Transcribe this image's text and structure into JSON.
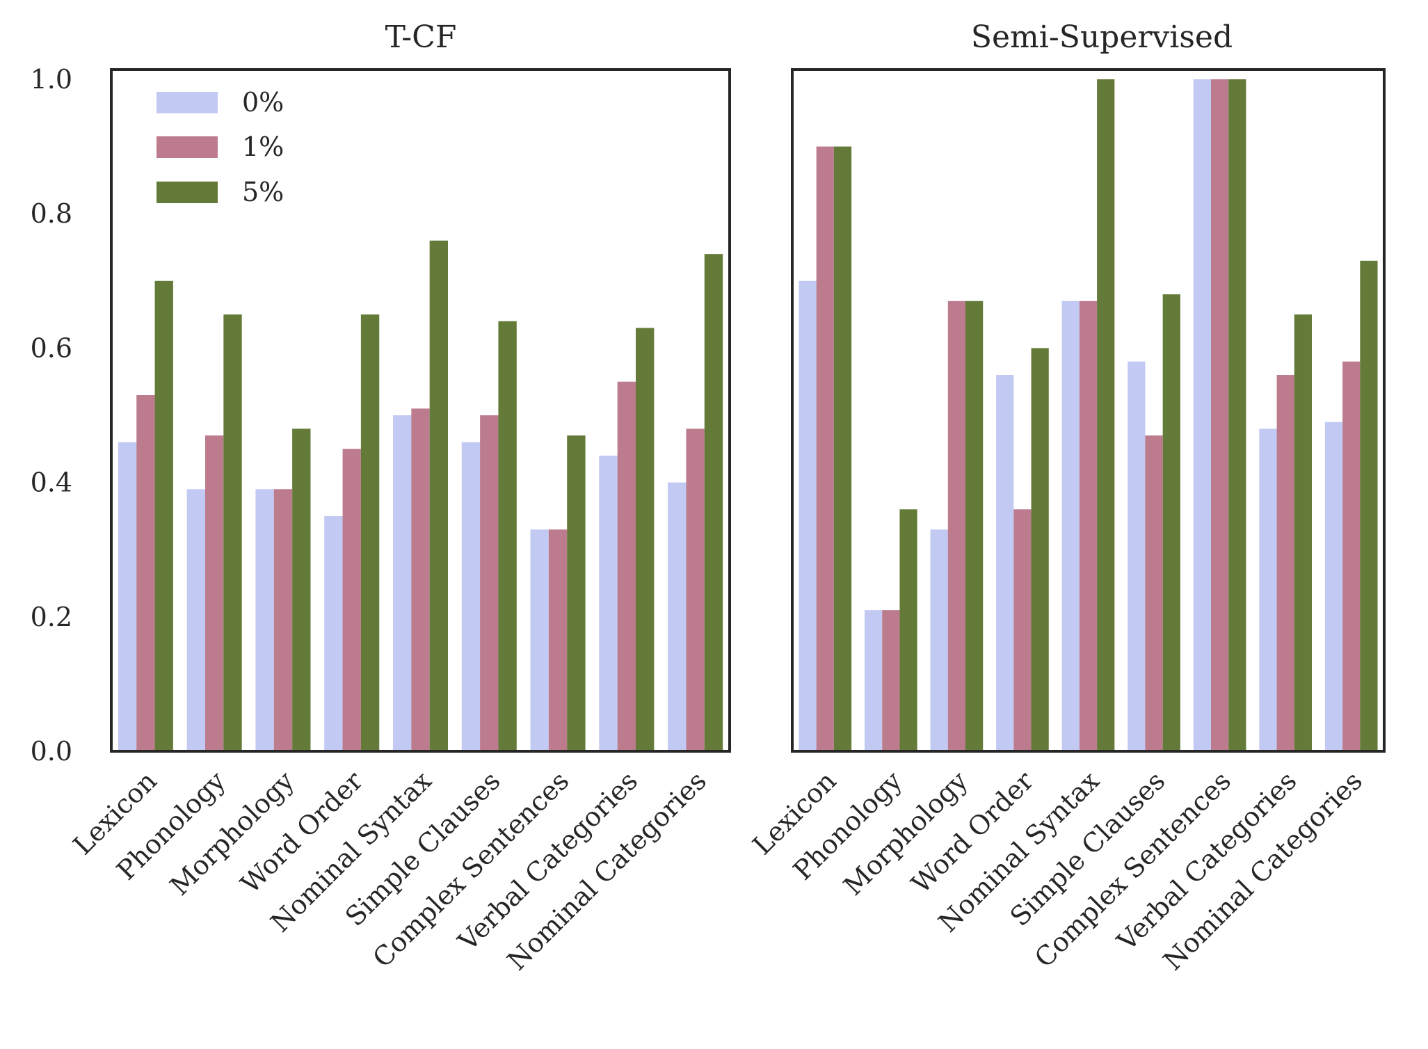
{
  "chart_data": [
    {
      "type": "bar",
      "title": "T-CF",
      "xlabel": "",
      "ylabel": "",
      "ylim": [
        0,
        1.0
      ],
      "yticks": [
        "0.0",
        "0.2",
        "0.4",
        "0.6",
        "0.8",
        "1.0"
      ],
      "grid": false,
      "legend_position": "top-left",
      "categories": [
        "Lexicon",
        "Phonology",
        "Morphology",
        "Word Order",
        "Nominal Syntax",
        "Simple Clauses",
        "Complex Sentences",
        "Verbal Categories",
        "Nominal Categories"
      ],
      "series": [
        {
          "name": "0%",
          "color": "#c2c9f2",
          "values": [
            0.46,
            0.39,
            0.39,
            0.35,
            0.5,
            0.46,
            0.33,
            0.44,
            0.4
          ]
        },
        {
          "name": "1%",
          "color": "#bd7b8e",
          "values": [
            0.53,
            0.47,
            0.39,
            0.45,
            0.51,
            0.5,
            0.33,
            0.55,
            0.48
          ]
        },
        {
          "name": "5%",
          "color": "#637a38",
          "values": [
            0.7,
            0.65,
            0.48,
            0.65,
            0.76,
            0.64,
            0.47,
            0.63,
            0.74
          ]
        }
      ]
    },
    {
      "type": "bar",
      "title": "Semi-Supervised",
      "xlabel": "",
      "ylabel": "",
      "ylim": [
        0,
        1.0
      ],
      "grid": false,
      "categories": [
        "Lexicon",
        "Phonology",
        "Morphology",
        "Word Order",
        "Nominal Syntax",
        "Simple Clauses",
        "Complex Sentences",
        "Verbal Categories",
        "Nominal Categories"
      ],
      "series": [
        {
          "name": "0%",
          "color": "#c2c9f2",
          "values": [
            0.7,
            0.21,
            0.33,
            0.56,
            0.67,
            0.58,
            1.0,
            0.48,
            0.49
          ]
        },
        {
          "name": "1%",
          "color": "#bd7b8e",
          "values": [
            0.9,
            0.21,
            0.67,
            0.36,
            0.67,
            0.47,
            1.0,
            0.56,
            0.58
          ]
        },
        {
          "name": "5%",
          "color": "#637a38",
          "values": [
            0.9,
            0.36,
            0.67,
            0.6,
            1.0,
            0.68,
            1.0,
            0.65,
            0.73
          ]
        }
      ]
    }
  ]
}
